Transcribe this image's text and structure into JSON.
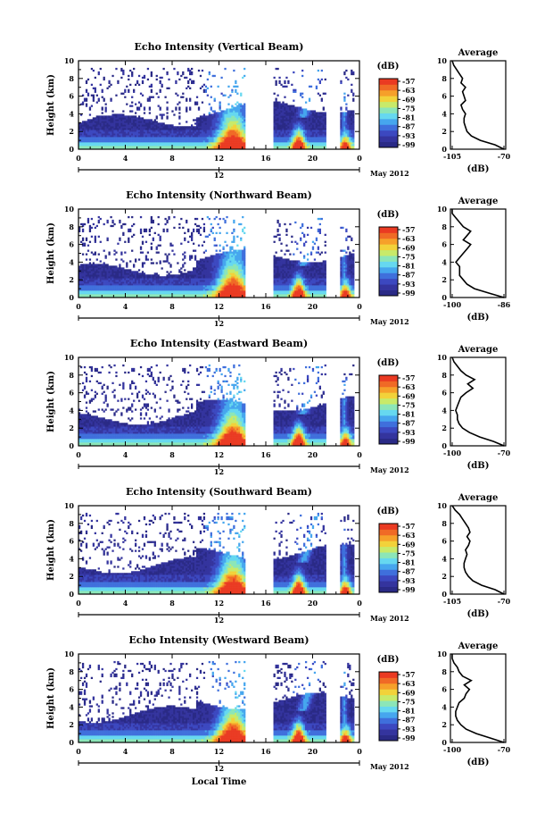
{
  "figure": {
    "xlabel": "Local Time",
    "date_label": "May 2012",
    "colorbar_label": "(dB)",
    "avg_title": "Average",
    "avg_xlabel": "(dB)",
    "ylabel": "Height (km)",
    "marker_label": "12"
  },
  "colors": {
    "colormap": [
      "#2a2a86",
      "#34349e",
      "#3c48c0",
      "#3f6fdc",
      "#46a6ee",
      "#66d8f0",
      "#8ce6b8",
      "#c8ea6a",
      "#f2d23a",
      "#f6a02a",
      "#f06a26",
      "#ea3a22"
    ],
    "missing": "#ffffff"
  },
  "chart_data": [
    {
      "type": "heatmap",
      "title": "Echo Intensity (Vertical Beam)",
      "x_ticks": [
        "0",
        "4",
        "8",
        "12",
        "16",
        "20",
        "0"
      ],
      "y_ticks": [
        "0",
        "2",
        "4",
        "6",
        "8",
        "10"
      ],
      "xlim": [
        0,
        24
      ],
      "ylim": [
        0,
        10
      ],
      "colorbar_ticks": [
        "-57",
        "-63",
        "-69",
        "-75",
        "-81",
        "-87",
        "-93",
        "-99"
      ],
      "colorbar_range": [
        -99,
        -57
      ],
      "avg_xticks": [
        "-105",
        "-70"
      ],
      "avg_xlim": [
        -105,
        -70
      ],
      "avg_profile": {
        "height": [
          0,
          0.5,
          1,
          1.5,
          2,
          2.5,
          3,
          3.5,
          4,
          4.5,
          5,
          5.5,
          6,
          6.5,
          7,
          7.5,
          8,
          8.5,
          9,
          9.5,
          10
        ],
        "value": [
          -70,
          -76,
          -86,
          -92,
          -95,
          -96,
          -97,
          -97,
          -96,
          -98,
          -99,
          -96,
          -97,
          -98,
          -96,
          -99,
          -98,
          -100,
          -102,
          -104,
          -105
        ]
      }
    },
    {
      "type": "heatmap",
      "title": "Echo Intensity (Northward Beam)",
      "x_ticks": [
        "0",
        "4",
        "8",
        "12",
        "16",
        "20",
        "0"
      ],
      "y_ticks": [
        "0",
        "2",
        "4",
        "6",
        "8",
        "10"
      ],
      "xlim": [
        0,
        24
      ],
      "ylim": [
        0,
        10
      ],
      "colorbar_ticks": [
        "-57",
        "-63",
        "-69",
        "-75",
        "-81",
        "-87",
        "-93",
        "-99"
      ],
      "colorbar_range": [
        -99,
        -57
      ],
      "avg_xticks": [
        "-100",
        "-86"
      ],
      "avg_xlim": [
        -100,
        -86
      ],
      "avg_profile": {
        "height": [
          0,
          0.5,
          1,
          1.5,
          2,
          2.5,
          3,
          3.5,
          4,
          4.5,
          5,
          5.5,
          6,
          6.5,
          7,
          7.5,
          8,
          8.5,
          9,
          9.5,
          10
        ],
        "value": [
          -86,
          -90,
          -94,
          -96,
          -97,
          -98,
          -98,
          -98,
          -99,
          -98,
          -97,
          -96,
          -95,
          -97,
          -96,
          -95,
          -97,
          -98,
          -99,
          -100,
          -100
        ]
      }
    },
    {
      "type": "heatmap",
      "title": "Echo Intensity (Eastward Beam)",
      "x_ticks": [
        "0",
        "4",
        "8",
        "12",
        "16",
        "20",
        "0"
      ],
      "y_ticks": [
        "0",
        "2",
        "4",
        "6",
        "8",
        "10"
      ],
      "xlim": [
        0,
        24
      ],
      "ylim": [
        0,
        10
      ],
      "colorbar_ticks": [
        "-57",
        "-63",
        "-69",
        "-75",
        "-81",
        "-87",
        "-93",
        "-99"
      ],
      "colorbar_range": [
        -99,
        -57
      ],
      "avg_xticks": [
        "-100",
        "-70"
      ],
      "avg_xlim": [
        -100,
        -70
      ],
      "avg_profile": {
        "height": [
          0,
          0.5,
          1,
          1.5,
          2,
          2.5,
          3,
          3.5,
          4,
          4.5,
          5,
          5.5,
          6,
          6.5,
          7,
          7.5,
          8,
          8.5,
          9,
          9.5,
          10
        ],
        "value": [
          -70,
          -76,
          -84,
          -90,
          -94,
          -96,
          -97,
          -97,
          -98,
          -97,
          -96,
          -95,
          -92,
          -88,
          -91,
          -87,
          -92,
          -95,
          -97,
          -99,
          -100
        ]
      }
    },
    {
      "type": "heatmap",
      "title": "Echo Intensity (Southward Beam)",
      "x_ticks": [
        "0",
        "4",
        "8",
        "12",
        "16",
        "20",
        "0"
      ],
      "y_ticks": [
        "0",
        "2",
        "4",
        "6",
        "8",
        "10"
      ],
      "xlim": [
        0,
        24
      ],
      "ylim": [
        0,
        10
      ],
      "colorbar_ticks": [
        "-57",
        "-63",
        "-69",
        "-75",
        "-81",
        "-87",
        "-93",
        "-99"
      ],
      "colorbar_range": [
        -99,
        -57
      ],
      "avg_xticks": [
        "-105",
        "-70"
      ],
      "avg_xlim": [
        -105,
        -70
      ],
      "avg_profile": {
        "height": [
          0,
          0.5,
          1,
          1.5,
          2,
          2.5,
          3,
          3.5,
          4,
          4.5,
          5,
          5.5,
          6,
          6.5,
          7,
          7.5,
          8,
          8.5,
          9,
          9.5,
          10
        ],
        "value": [
          -70,
          -76,
          -85,
          -91,
          -94,
          -96,
          -97,
          -97,
          -96,
          -95,
          -96,
          -94,
          -93,
          -95,
          -93,
          -94,
          -96,
          -98,
          -100,
          -103,
          -105
        ]
      }
    },
    {
      "type": "heatmap",
      "title": "Echo Intensity (Westward Beam)",
      "x_ticks": [
        "0",
        "4",
        "8",
        "12",
        "16",
        "20",
        "0"
      ],
      "y_ticks": [
        "0",
        "2",
        "4",
        "6",
        "8",
        "10"
      ],
      "xlim": [
        0,
        24
      ],
      "ylim": [
        0,
        10
      ],
      "colorbar_ticks": [
        "-57",
        "-63",
        "-69",
        "-75",
        "-81",
        "-87",
        "-93",
        "-99"
      ],
      "colorbar_range": [
        -99,
        -57
      ],
      "avg_xticks": [
        "-100",
        "-70"
      ],
      "avg_xlim": [
        -100,
        -70
      ],
      "avg_profile": {
        "height": [
          0,
          0.5,
          1,
          1.5,
          2,
          2.5,
          3,
          3.5,
          4,
          4.5,
          5,
          5.5,
          6,
          6.5,
          7,
          7.5,
          8,
          8.5,
          9,
          9.5,
          10
        ],
        "value": [
          -70,
          -78,
          -86,
          -92,
          -95,
          -97,
          -98,
          -98,
          -97,
          -96,
          -93,
          -92,
          -90,
          -93,
          -89,
          -94,
          -96,
          -97,
          -99,
          -100,
          -100
        ]
      }
    }
  ]
}
